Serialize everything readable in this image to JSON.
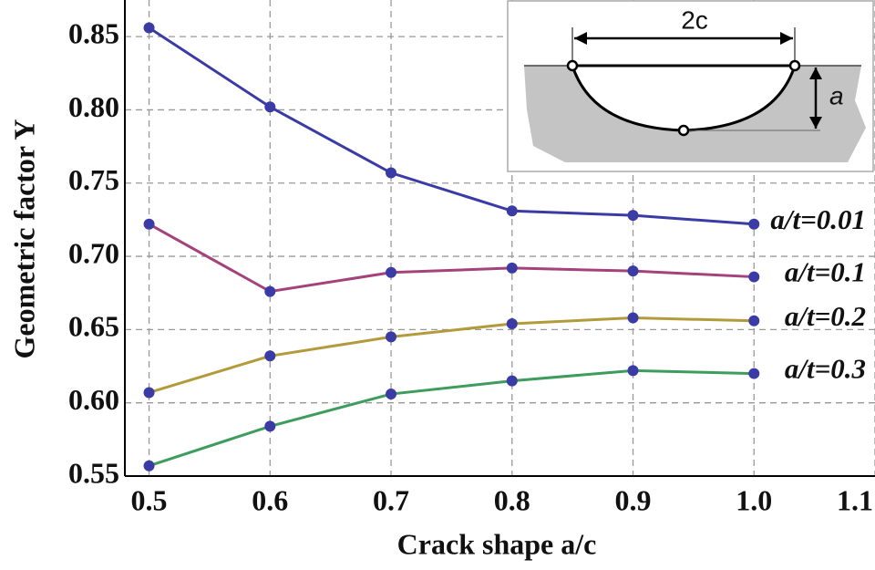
{
  "chart_data": {
    "type": "line",
    "x_label": "Crack shape  a/c",
    "y_label": "Geometric factor  Y",
    "x": [
      0.5,
      0.6,
      0.7,
      0.8,
      0.9,
      1.0
    ],
    "series": [
      {
        "name": "a/t=0.01",
        "color": "#3b3ba6",
        "values": [
          0.856,
          0.802,
          0.757,
          0.731,
          0.728,
          0.722
        ]
      },
      {
        "name": "a/t=0.1",
        "color": "#a4427c",
        "values": [
          0.722,
          0.676,
          0.689,
          0.692,
          0.69,
          0.686
        ]
      },
      {
        "name": "a/t=0.2",
        "color": "#b39b3c",
        "values": [
          0.607,
          0.632,
          0.645,
          0.654,
          0.658,
          0.656
        ]
      },
      {
        "name": "a/t=0.3",
        "color": "#3e9c5c",
        "values": [
          0.557,
          0.584,
          0.606,
          0.615,
          0.622,
          0.62
        ]
      }
    ],
    "marker_color": "#3b3ba6",
    "xlim": [
      0.48,
      1.1
    ],
    "xticks": [
      0.5,
      0.6,
      0.7,
      0.8,
      0.9,
      {
        "value": 1.0,
        "label": "1.0"
      },
      1.1
    ],
    "ylim": [
      0.55,
      0.875
    ],
    "yticks": [
      0.55,
      {
        "value": 0.6,
        "label": "0.60"
      },
      0.65,
      {
        "value": 0.7,
        "label": "0.70"
      },
      0.75,
      {
        "value": 0.8,
        "label": "0.80"
      },
      0.85
    ],
    "grid": true,
    "inset": {
      "width_label": "2c",
      "depth_label": "a"
    }
  }
}
